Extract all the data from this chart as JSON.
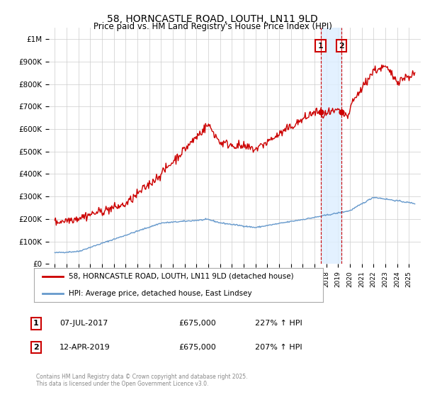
{
  "title": "58, HORNCASTLE ROAD, LOUTH, LN11 9LD",
  "subtitle": "Price paid vs. HM Land Registry's House Price Index (HPI)",
  "legend_line1": "58, HORNCASTLE ROAD, LOUTH, LN11 9LD (detached house)",
  "legend_line2": "HPI: Average price, detached house, East Lindsey",
  "annotation1_label": "1",
  "annotation1_date": "07-JUL-2017",
  "annotation1_price": "£675,000",
  "annotation1_hpi": "227% ↑ HPI",
  "annotation2_label": "2",
  "annotation2_date": "12-APR-2019",
  "annotation2_price": "£675,000",
  "annotation2_hpi": "207% ↑ HPI",
  "copyright": "Contains HM Land Registry data © Crown copyright and database right 2025.\nThis data is licensed under the Open Government Licence v3.0.",
  "red_color": "#cc0000",
  "blue_color": "#6699cc",
  "vline_color": "#cc0000",
  "shade_color": "#ddeeff",
  "background_color": "#ffffff",
  "ylim": [
    0,
    1050000
  ],
  "yticks": [
    0,
    100000,
    200000,
    300000,
    400000,
    500000,
    600000,
    700000,
    800000,
    900000,
    1000000
  ],
  "ytick_labels": [
    "£0",
    "£100K",
    "£200K",
    "£300K",
    "£400K",
    "£500K",
    "£600K",
    "£700K",
    "£800K",
    "£900K",
    "£1M"
  ],
  "sale1_year": 2017.52,
  "sale1_value": 675000,
  "sale2_year": 2019.28,
  "sale2_value": 675000
}
